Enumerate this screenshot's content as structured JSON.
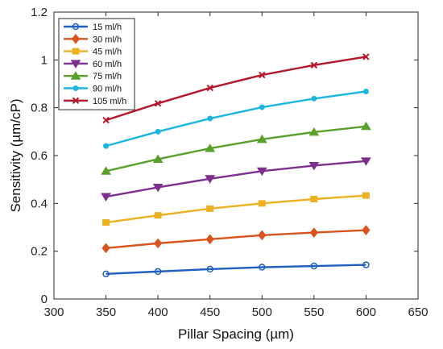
{
  "chart_data": {
    "type": "line",
    "xlabel": "Pillar Spacing (µm)",
    "ylabel": "Sensitivity (µm/cP)",
    "xlim": [
      300,
      650
    ],
    "ylim": [
      0,
      1.2
    ],
    "xticks": [
      300,
      350,
      400,
      450,
      500,
      550,
      600,
      650
    ],
    "yticks": [
      0,
      0.2,
      0.4,
      0.6,
      0.8,
      1,
      1.2
    ],
    "xtick_labels": [
      "300",
      "350",
      "400",
      "450",
      "500",
      "550",
      "600",
      "650"
    ],
    "ytick_labels": [
      "0",
      "0.2",
      "0.4",
      "0.6",
      "0.8",
      "1",
      "1.2"
    ],
    "grid": false,
    "legend_position": "top-left",
    "x": [
      350,
      400,
      450,
      500,
      550,
      600
    ],
    "series": [
      {
        "name": "15 ml/h",
        "color": "#1f5fbf",
        "marker": "circle-open",
        "values": [
          0.105,
          0.115,
          0.125,
          0.133,
          0.138,
          0.143
        ]
      },
      {
        "name": "30 ml/h",
        "color": "#d9531e",
        "marker": "diamond",
        "values": [
          0.213,
          0.233,
          0.25,
          0.267,
          0.278,
          0.288
        ]
      },
      {
        "name": "45 ml/h",
        "color": "#edb120",
        "marker": "square",
        "values": [
          0.32,
          0.35,
          0.378,
          0.4,
          0.418,
          0.433
        ]
      },
      {
        "name": "60 ml/h",
        "color": "#7e2f8e",
        "marker": "triangle-down",
        "values": [
          0.428,
          0.467,
          0.503,
          0.535,
          0.558,
          0.577
        ]
      },
      {
        "name": "75 ml/h",
        "color": "#5aa02c",
        "marker": "triangle-up",
        "values": [
          0.535,
          0.585,
          0.63,
          0.668,
          0.698,
          0.722
        ]
      },
      {
        "name": "90 ml/h",
        "color": "#1ab6e0",
        "marker": "dot",
        "values": [
          0.64,
          0.7,
          0.755,
          0.802,
          0.838,
          0.868
        ]
      },
      {
        "name": "105 ml/h",
        "color": "#b5172a",
        "marker": "x",
        "values": [
          0.748,
          0.818,
          0.883,
          0.937,
          0.978,
          1.013
        ]
      }
    ]
  }
}
